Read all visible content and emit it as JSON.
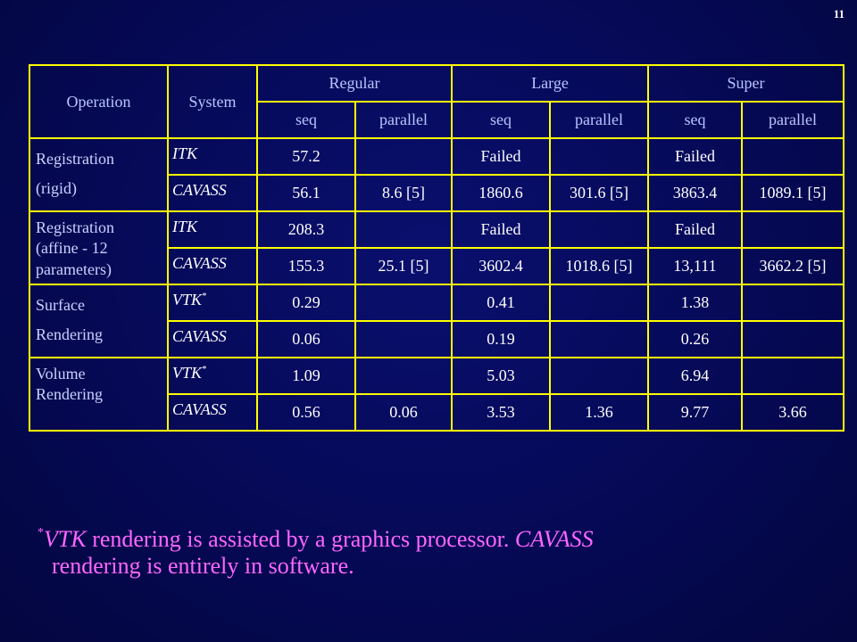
{
  "slide_number": "11",
  "header": {
    "operation": "Operation",
    "system": "System",
    "regular": "Regular",
    "large": "Large",
    "super": "Super",
    "seq": "seq",
    "parallel": "parallel"
  },
  "rows": {
    "reg_rigid": {
      "op_line1": "Registration",
      "op_line2": "(rigid)",
      "itk": {
        "system": "ITK",
        "reg_seq": "57.2",
        "reg_par": "",
        "large_seq": "Failed",
        "large_par": "",
        "super_seq": "Failed",
        "super_par": ""
      },
      "cavass": {
        "system": "CAVASS",
        "reg_seq": "56.1",
        "reg_par": "8.6 [5]",
        "large_seq": "1860.6",
        "large_par": "301.6 [5]",
        "super_seq": "3863.4",
        "super_par": "1089.1 [5]"
      }
    },
    "reg_affine": {
      "op_line1": "Registration",
      "op_line2": "(affine - 12",
      "op_line3": "parameters)",
      "itk": {
        "system": "ITK",
        "reg_seq": "208.3",
        "reg_par": "",
        "large_seq": "Failed",
        "large_par": "",
        "super_seq": "Failed",
        "super_par": ""
      },
      "cavass": {
        "system": "CAVASS",
        "reg_seq": "155.3",
        "reg_par": "25.1 [5]",
        "large_seq": "3602.4",
        "large_par": "1018.6 [5]",
        "super_seq": "13,111",
        "super_par": "3662.2 [5]"
      }
    },
    "surface": {
      "op_line1": "Surface",
      "op_line2": "Rendering",
      "vtk": {
        "system": "VTK",
        "sup": "*",
        "reg_seq": "0.29",
        "reg_par": "",
        "large_seq": "0.41",
        "large_par": "",
        "super_seq": "1.38",
        "super_par": ""
      },
      "cavass": {
        "system": "CAVASS",
        "reg_seq": "0.06",
        "reg_par": "",
        "large_seq": "0.19",
        "large_par": "",
        "super_seq": "0.26",
        "super_par": ""
      }
    },
    "volume": {
      "op_line1": "Volume",
      "op_line2": "Rendering",
      "vtk": {
        "system": "VTK",
        "sup": "*",
        "reg_seq": "1.09",
        "reg_par": "",
        "large_seq": "5.03",
        "large_par": "",
        "super_seq": "6.94",
        "super_par": ""
      },
      "cavass": {
        "system": "CAVASS",
        "reg_seq": "0.56",
        "reg_par": "0.06",
        "large_seq": "3.53",
        "large_par": "1.36",
        "super_seq": "9.77",
        "super_par": "3.66"
      }
    }
  },
  "footnote": {
    "star": "*",
    "vtk": "VTK",
    "text1": " rendering is assisted by a graphics processor. ",
    "cavass": "CAVASS",
    "text2": "rendering is entirely in software."
  },
  "colors": {
    "background": "#060a5a",
    "border": "#ffff00",
    "header_text": "#b9c5ff",
    "footnote": "#ff66ff"
  }
}
